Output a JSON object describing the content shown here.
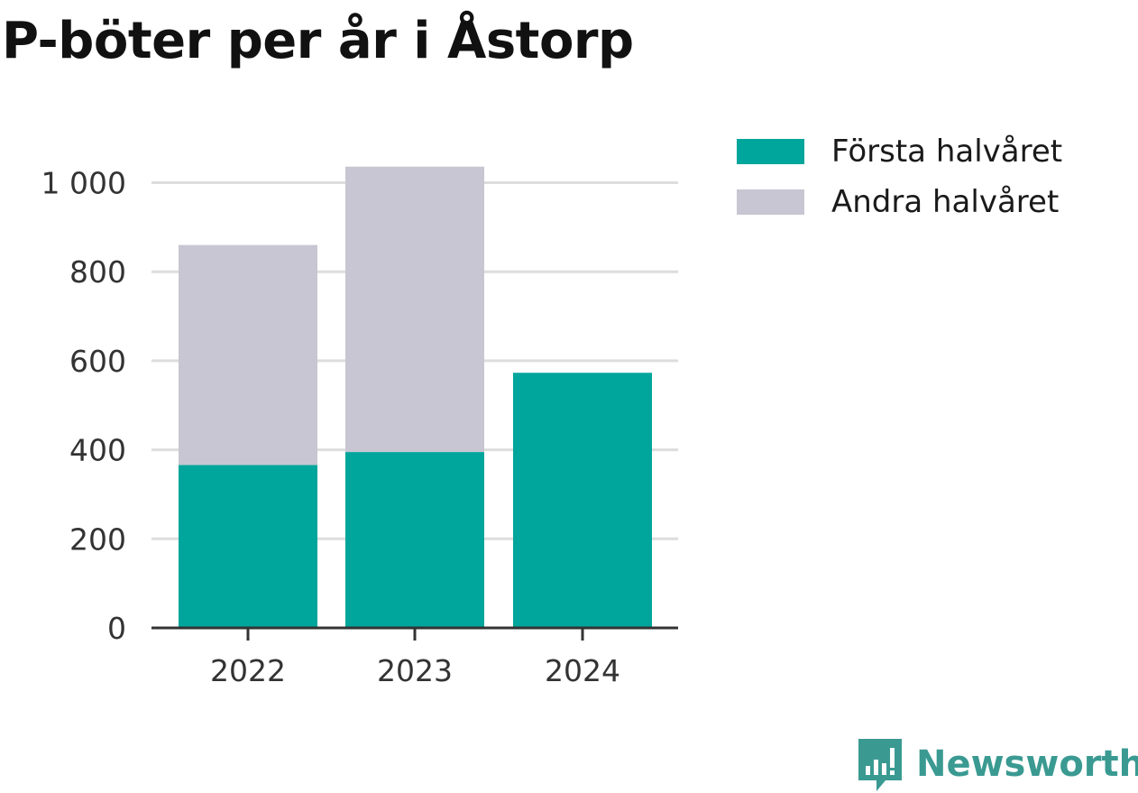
{
  "title": "P-böter per år i Åstorp",
  "brand": {
    "name": "Newsworthy",
    "color": "#3a9a92"
  },
  "colors": {
    "first_half": "#00a59b",
    "second_half": "#c8c6d2",
    "grid": "#dddddd",
    "axis": "#333333",
    "tick_text": "#333333"
  },
  "chart_data": {
    "type": "bar",
    "stacked": true,
    "title": "P-böter per år i Åstorp",
    "categories": [
      "2022",
      "2023",
      "2024"
    ],
    "series": [
      {
        "name": "Första halvåret",
        "values": [
          366,
          395,
          573
        ]
      },
      {
        "name": "Andra halvåret",
        "values": [
          494,
          641,
          0
        ]
      }
    ],
    "xlabel": "",
    "ylabel": "",
    "ylim": [
      0,
      1000
    ],
    "yticks": [
      "0",
      "200",
      "400",
      "600",
      "800",
      "1 000"
    ],
    "grid": true,
    "legend": "top-right"
  }
}
